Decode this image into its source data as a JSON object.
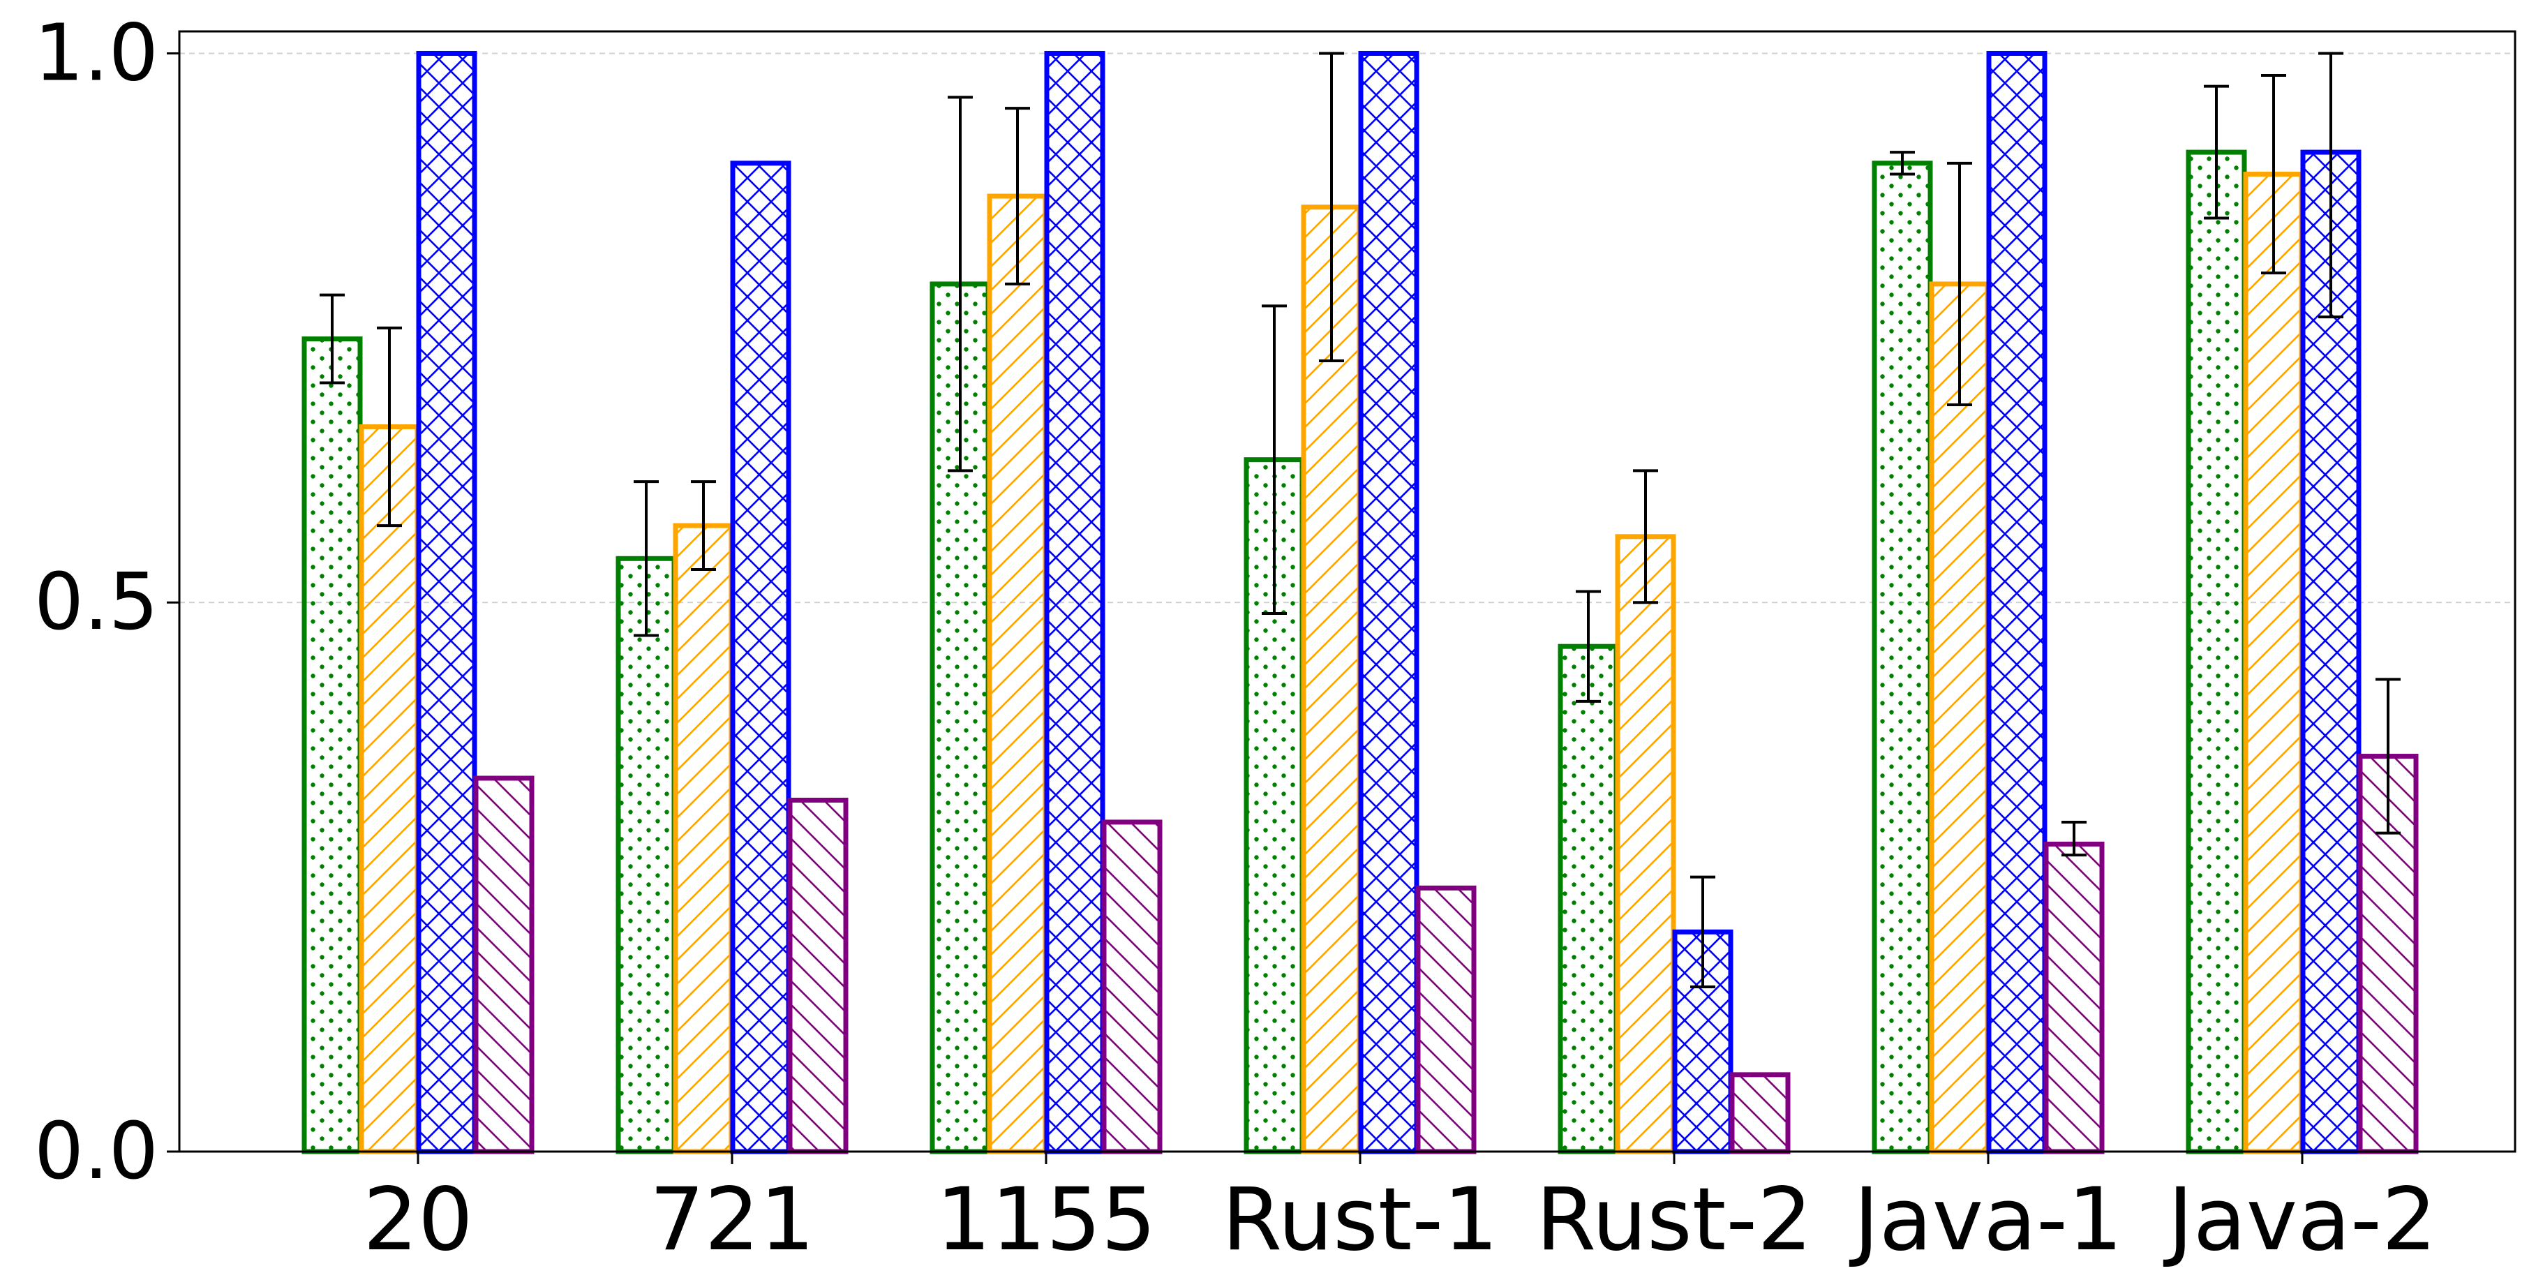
{
  "chart_data": {
    "type": "bar",
    "title": "",
    "xlabel": "",
    "ylabel": "",
    "ylim": [
      0,
      1.02
    ],
    "yticks": [
      "0.0",
      "0.5",
      "1.0"
    ],
    "ytick_values": [
      0.0,
      0.5,
      1.0
    ],
    "grid": "horizontal dashed",
    "categories": [
      "20",
      "721",
      "1155",
      "Rust-1",
      "Rust-2",
      "Java-1",
      "Java-2"
    ],
    "series": [
      {
        "color": "#008000",
        "hatch": "dots",
        "values": [
          0.74,
          0.54,
          0.79,
          0.63,
          0.46,
          0.9,
          0.91
        ],
        "err_low": [
          0.7,
          0.47,
          0.62,
          0.49,
          0.41,
          0.89,
          0.85
        ],
        "err_high": [
          0.78,
          0.61,
          0.96,
          0.77,
          0.51,
          0.91,
          0.97
        ]
      },
      {
        "color": "#FFA500",
        "hatch": "forward-diagonal",
        "values": [
          0.66,
          0.57,
          0.87,
          0.86,
          0.56,
          0.79,
          0.89
        ],
        "err_low": [
          0.57,
          0.53,
          0.79,
          0.72,
          0.5,
          0.68,
          0.8
        ],
        "err_high": [
          0.75,
          0.61,
          0.95,
          1.0,
          0.62,
          0.9,
          0.98
        ]
      },
      {
        "color": "#0000FF",
        "hatch": "cross",
        "values": [
          1.0,
          0.9,
          1.0,
          1.0,
          0.2,
          1.0,
          0.91
        ],
        "err_low": [
          null,
          null,
          null,
          null,
          0.15,
          null,
          0.76
        ],
        "err_high": [
          null,
          null,
          null,
          null,
          0.25,
          null,
          1.0
        ]
      },
      {
        "color": "#800080",
        "hatch": "back-diagonal",
        "values": [
          0.34,
          0.32,
          0.3,
          0.24,
          0.07,
          0.28,
          0.36
        ],
        "err_low": [
          null,
          null,
          null,
          null,
          null,
          0.27,
          0.29
        ],
        "err_high": [
          null,
          null,
          null,
          null,
          null,
          0.3,
          0.43
        ]
      }
    ]
  }
}
